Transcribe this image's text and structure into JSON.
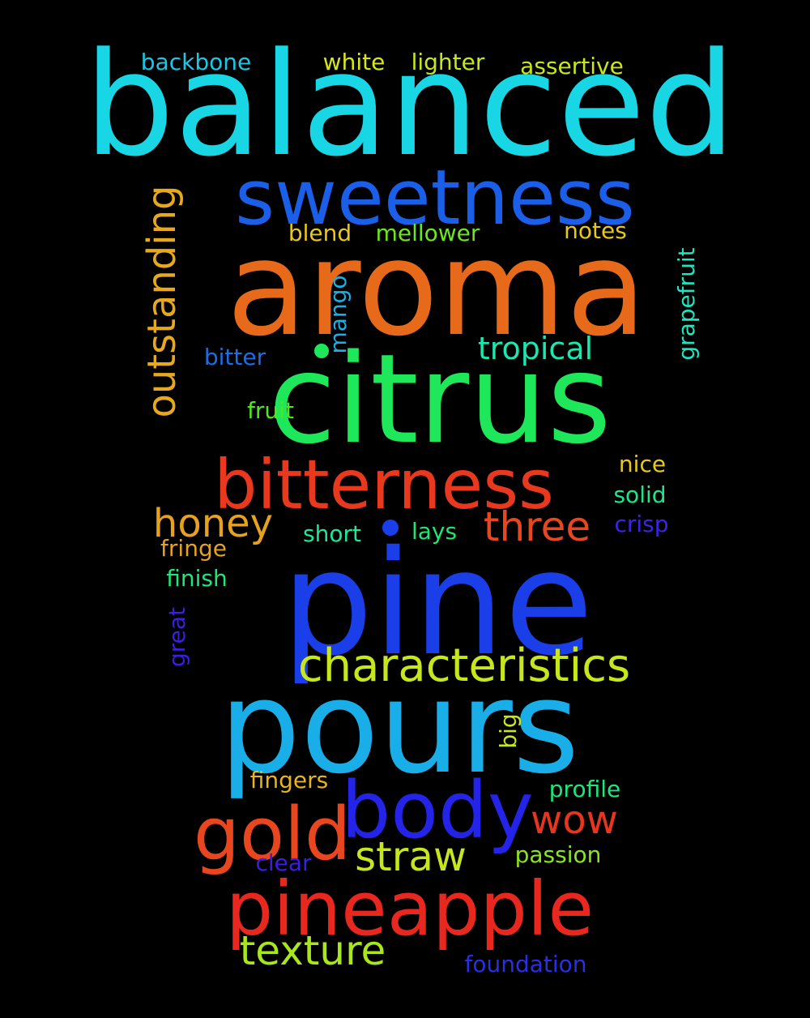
{
  "words": [
    {
      "text": "balanced",
      "color": "#18d6e3"
    },
    {
      "text": "sweetness",
      "color": "#1b5ee8"
    },
    {
      "text": "aroma",
      "color": "#e66a1a"
    },
    {
      "text": "citrus",
      "color": "#1ee85a"
    },
    {
      "text": "bitterness",
      "color": "#e8381e"
    },
    {
      "text": "pine",
      "color": "#1a3ee8"
    },
    {
      "text": "pours",
      "color": "#1aaee8"
    },
    {
      "text": "characteristics",
      "color": "#c8e61e"
    },
    {
      "text": "body",
      "color": "#2424e8"
    },
    {
      "text": "gold",
      "color": "#e8461e"
    },
    {
      "text": "pineapple",
      "color": "#e8281e"
    },
    {
      "text": "outstanding",
      "color": "#e6a81e"
    },
    {
      "text": "honey",
      "color": "#e6a21e"
    },
    {
      "text": "three",
      "color": "#e8461e"
    },
    {
      "text": "straw",
      "color": "#c8e61e"
    },
    {
      "text": "texture",
      "color": "#a8e61e"
    },
    {
      "text": "wow",
      "color": "#e8361e"
    },
    {
      "text": "tropical",
      "color": "#1ee6b0"
    },
    {
      "text": "backbone",
      "color": "#1ac8e6"
    },
    {
      "text": "white",
      "color": "#d6e61e"
    },
    {
      "text": "lighter",
      "color": "#c8e61e"
    },
    {
      "text": "assertive",
      "color": "#c8e61e"
    },
    {
      "text": "blend",
      "color": "#e6c81e"
    },
    {
      "text": "mellower",
      "color": "#6ee61e"
    },
    {
      "text": "notes",
      "color": "#e6c81e"
    },
    {
      "text": "mango",
      "color": "#1ab0e6"
    },
    {
      "text": "grapefruit",
      "color": "#1ee6c0"
    },
    {
      "text": "bitter",
      "color": "#1a6ee6"
    },
    {
      "text": "fruit",
      "color": "#4ee61e"
    },
    {
      "text": "nice",
      "color": "#e6c81e"
    },
    {
      "text": "solid",
      "color": "#1ee68a"
    },
    {
      "text": "crisp",
      "color": "#3a24e6"
    },
    {
      "text": "short",
      "color": "#1ee69a"
    },
    {
      "text": "lays",
      "color": "#1ee66e"
    },
    {
      "text": "fringe",
      "color": "#e6a21e"
    },
    {
      "text": "finish",
      "color": "#1ee67a"
    },
    {
      "text": "great",
      "color": "#3a1ee6"
    },
    {
      "text": "big",
      "color": "#c8e61e"
    },
    {
      "text": "fingers",
      "color": "#e6b41e"
    },
    {
      "text": "profile",
      "color": "#1ee67a"
    },
    {
      "text": "passion",
      "color": "#8ae61e"
    },
    {
      "text": "clear",
      "color": "#3a1ee6"
    },
    {
      "text": "foundation",
      "color": "#2a2ee6"
    }
  ],
  "dots": [
    {
      "color": "#1ee85a"
    },
    {
      "color": "#1a3ee8"
    }
  ]
}
